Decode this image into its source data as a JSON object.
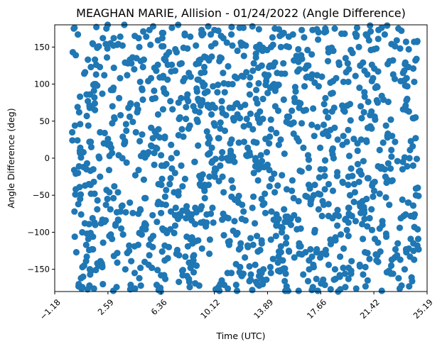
{
  "chart_data": {
    "type": "scatter",
    "title": "MEAGHAN MARIE, Allision - 01/24/2022 (Angle Difference)",
    "xlabel": "Time (UTC)",
    "ylabel": "Angle Difference (deg)",
    "xlim": [
      -1.18,
      25.19
    ],
    "ylim": [
      -180,
      180
    ],
    "x_ticks": [
      -1.18,
      2.59,
      6.36,
      10.12,
      13.89,
      17.66,
      21.42,
      25.19
    ],
    "x_tick_labels": [
      "−1.18",
      "2.59",
      "6.36",
      "10.12",
      "13.89",
      "17.66",
      "21.42",
      "25.19"
    ],
    "x_tick_rotation": 45,
    "y_ticks": [
      -150,
      -100,
      -50,
      0,
      50,
      100,
      150
    ],
    "y_tick_labels": [
      "−150",
      "−100",
      "−50",
      "0",
      "50",
      "100",
      "150"
    ],
    "grid": false,
    "marker_color": "#1f77b4",
    "point_count": 1300,
    "x_range_of_points": [
      0.05,
      24.6
    ],
    "y_range_of_points": [
      -180,
      180
    ],
    "points": []
  }
}
